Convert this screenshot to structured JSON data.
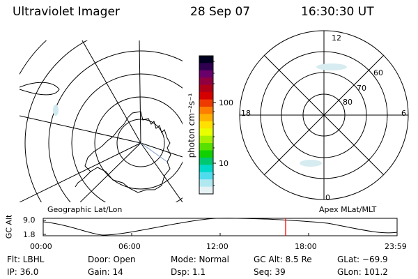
{
  "header": {
    "instrument": "Ultraviolet Imager",
    "date": "28 Sep 07",
    "time": "16:30:30 UT"
  },
  "colorbar": {
    "label": "photon cm⁻²s⁻¹",
    "ticks": [
      "100",
      "10"
    ],
    "colors": [
      "#000020",
      "#300050",
      "#6a006a",
      "#900040",
      "#b00018",
      "#d40000",
      "#ee3a00",
      "#ff7e00",
      "#ffb000",
      "#ffe000",
      "#e8ff00",
      "#a8f000",
      "#58e000",
      "#10d000",
      "#00c870",
      "#00d8c8",
      "#50dcec",
      "#b0e8f0",
      "#e6f2f4"
    ]
  },
  "geographic_map": {
    "label": "Geographic Lat/Lon"
  },
  "polar_plot": {
    "label": "Apex MLat/MLT",
    "mlt_labels": {
      "top": "12",
      "left": "18",
      "right": "6",
      "bottom": "0"
    },
    "lat_labels": [
      "60",
      "70",
      "80"
    ]
  },
  "altitude_plot": {
    "ylabel": "GC Alt",
    "yticks": [
      "9.0",
      "1.8"
    ],
    "xticks": [
      "00:00",
      "06:00",
      "12:00",
      "18:00",
      "23:59"
    ],
    "current_time_color": "#ff0000"
  },
  "footer": {
    "filter": "Flt: LBHL",
    "ip": "IP: 36.0",
    "door": "Door: Open",
    "gain": "Gain: 14",
    "mode": "Mode: Normal",
    "dsp": "Dsp:    1.1",
    "gc_alt": "GC Alt: 8.5 Re",
    "seq": "Seq: 39",
    "glat": "GLat: −69.9",
    "glon": "GLon: 101.2"
  }
}
